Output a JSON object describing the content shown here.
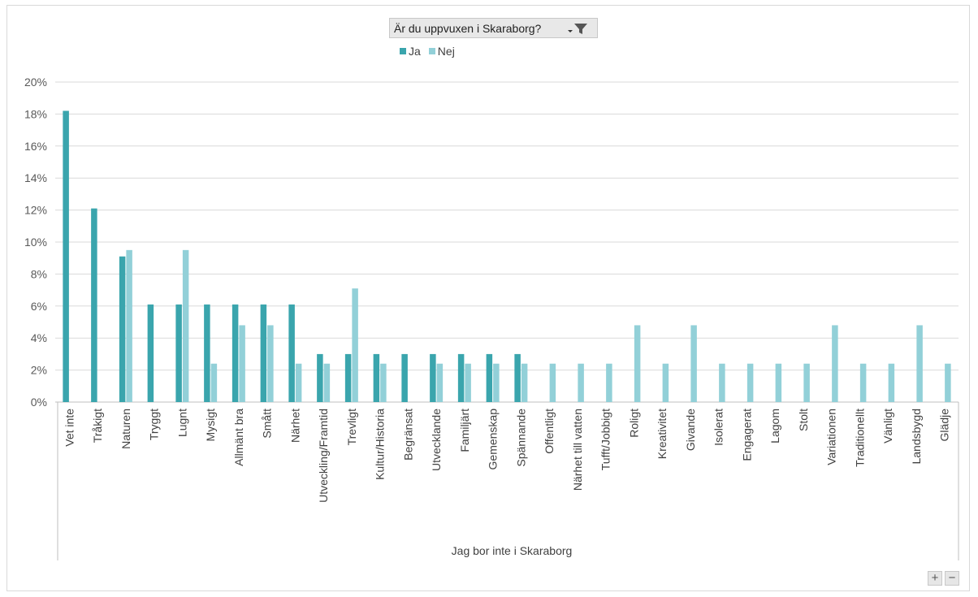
{
  "filter": {
    "label": "Är du uppvuxen i Skaraborg?"
  },
  "colors": {
    "ja": "#3aa5ad",
    "nej": "#92d0d8",
    "grid": "#d9d9d9",
    "axis": "#bfbfbf"
  },
  "zoom": {
    "plus": "+",
    "minus": "−"
  },
  "chart_data": {
    "type": "bar",
    "title": "",
    "xlabel": "",
    "ylabel": "",
    "group_label": "Jag bor inte i Skaraborg",
    "ylim": [
      0,
      20
    ],
    "yticks": [
      0,
      2,
      4,
      6,
      8,
      10,
      12,
      14,
      16,
      18,
      20
    ],
    "ytick_labels": [
      "0%",
      "2%",
      "4%",
      "6%",
      "8%",
      "10%",
      "12%",
      "14%",
      "16%",
      "18%",
      "20%"
    ],
    "grid": true,
    "legend": "top-center",
    "categories": [
      "Vet inte",
      "Tråkigt",
      "Naturen",
      "Tryggt",
      "Lugnt",
      "Mysigt",
      "Allmänt bra",
      "Smått",
      "Närhet",
      "Utveckling/Framtid",
      "Trevligt",
      "Kultur/Historia",
      "Begränsat",
      "Utvecklande",
      "Familjärt",
      "Gemenskap",
      "Spännande",
      "Offentligt",
      "Närhet till vatten",
      "Tufft/Jobbigt",
      "Roligt",
      "Kreativitet",
      "Givande",
      "Isolerat",
      "Engagerat",
      "Lagom",
      "Stolt",
      "Variationen",
      "Traditionellt",
      "Vänligt",
      "Landsbygd",
      "Glädje"
    ],
    "series": [
      {
        "name": "Ja",
        "values": [
          18.2,
          12.1,
          9.1,
          6.1,
          6.1,
          6.1,
          6.1,
          6.1,
          6.1,
          3.0,
          3.0,
          3.0,
          3.0,
          3.0,
          3.0,
          3.0,
          3.0,
          0,
          0,
          0,
          0,
          0,
          0,
          0,
          0,
          0,
          0,
          0,
          0,
          0,
          0,
          0
        ]
      },
      {
        "name": "Nej",
        "values": [
          0,
          0,
          9.5,
          0,
          9.5,
          2.4,
          4.8,
          4.8,
          2.4,
          2.4,
          7.1,
          2.4,
          0,
          2.4,
          2.4,
          2.4,
          2.4,
          2.4,
          2.4,
          2.4,
          4.8,
          2.4,
          4.8,
          2.4,
          2.4,
          2.4,
          2.4,
          4.8,
          2.4,
          2.4,
          4.8,
          2.4
        ]
      }
    ]
  }
}
